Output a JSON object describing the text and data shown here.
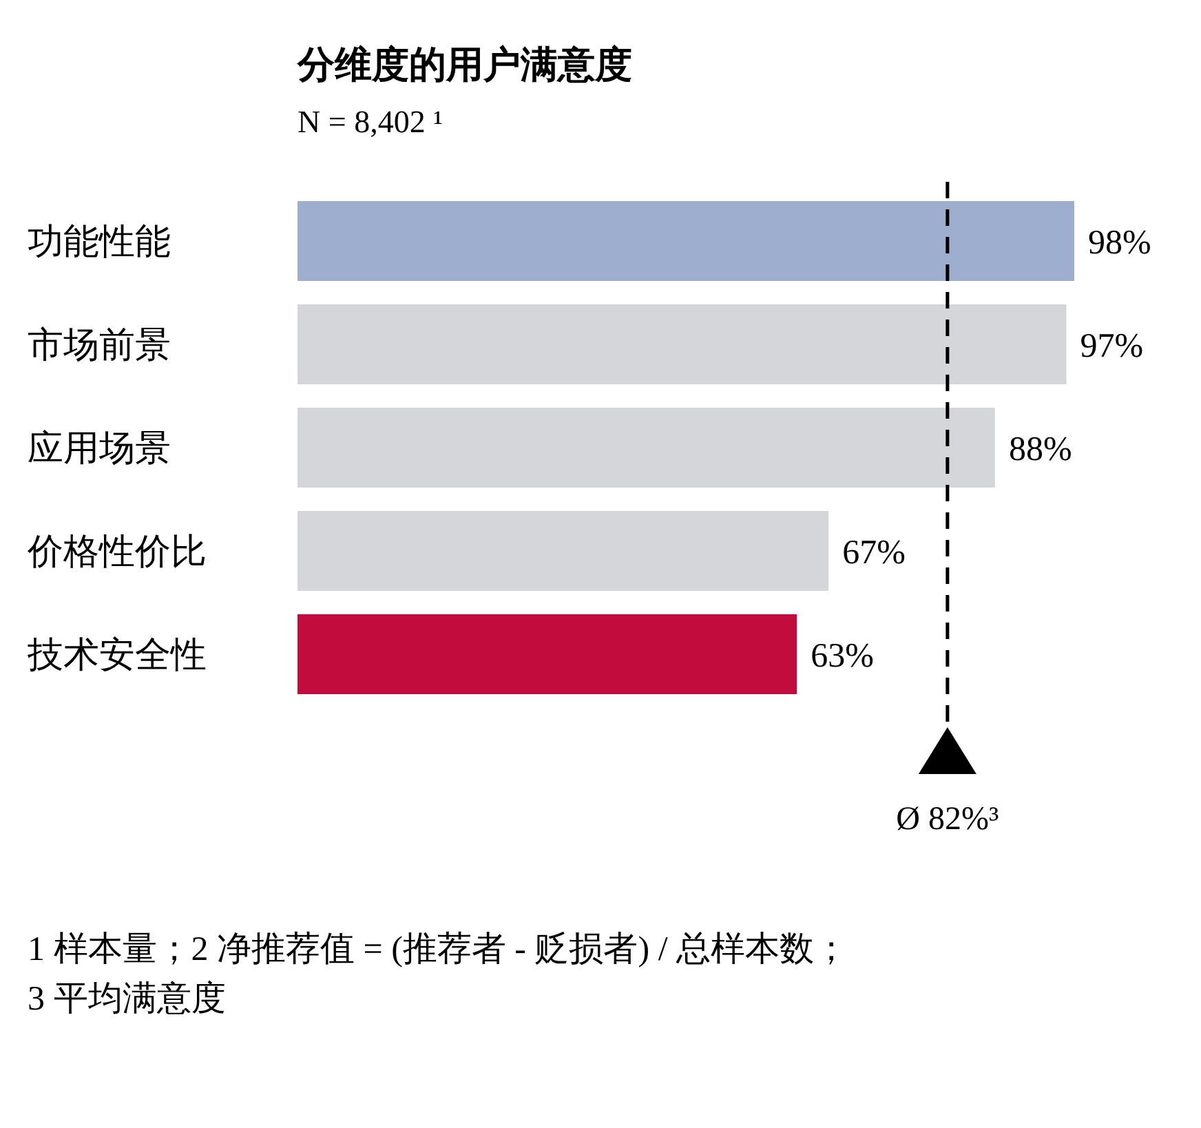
{
  "chart_data": {
    "type": "bar",
    "orientation": "horizontal",
    "title": "分维度的用户满意度",
    "subtitle": "N = 8,402 ¹",
    "categories": [
      "功能性能",
      "市场前景",
      "应用场景",
      "价格性价比",
      "技术安全性"
    ],
    "values": [
      98,
      97,
      88,
      67,
      63
    ],
    "colors": [
      "#9daecf",
      "#d5d6da",
      "#d5d6da",
      "#d5d6da",
      "#c20c3d"
    ],
    "value_labels": [
      "98%",
      "97%",
      "88%",
      "67%",
      "63%"
    ],
    "ref_lines": [
      {
        "axis": "x",
        "value": 82,
        "label": "Ø 82%³",
        "line_style": "dashed",
        "color": "#000000"
      }
    ],
    "annotations": [
      "1 样本量；2 净推荐值 = (推荐者 - 贬损者) / 总样本数；",
      "3 平均满意度"
    ]
  }
}
